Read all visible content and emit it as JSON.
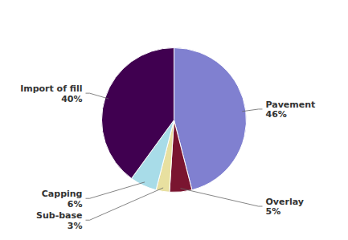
{
  "chart_data": {
    "type": "pie",
    "categories": [
      "Pavement",
      "Overlay",
      "Sub-base",
      "Capping",
      "Import of fill"
    ],
    "values": [
      46,
      5,
      3,
      6,
      40
    ],
    "value_labels": [
      "46%",
      "5%",
      "3%",
      "6%",
      "40%"
    ],
    "colors": [
      "#8080d0",
      "#7a1530",
      "#e8e0a0",
      "#a8dce8",
      "#400050"
    ]
  }
}
